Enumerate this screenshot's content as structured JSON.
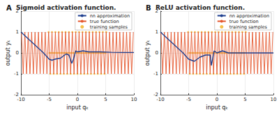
{
  "chart_data": [
    {
      "type": "line",
      "panel": "A",
      "title": "Sigmoid activation function.",
      "x_label": "input qₖ",
      "y_label": "output yₖ",
      "xlim": [
        -10,
        10
      ],
      "xticks": [
        -10,
        -5,
        0,
        5,
        10
      ],
      "ylim": [
        -2,
        2
      ],
      "yticks": [
        -2,
        -1,
        0,
        1,
        2
      ],
      "grid": true,
      "legend": "upper right",
      "series": [
        {
          "name": "nn approximation",
          "type": "line",
          "color": "#1f3f8f",
          "line_style": "solid",
          "x": [
            -10,
            -8,
            -6,
            -5,
            -4.5,
            -4,
            -3,
            -2,
            -1.5,
            -1,
            -0.7,
            -0.3,
            0,
            1,
            2,
            4,
            6,
            8,
            10
          ],
          "values": [
            1,
            0.5,
            0,
            -0.3,
            -0.35,
            -0.3,
            -0.25,
            -0.05,
            -0.1,
            -0.5,
            -0.3,
            0.1,
            0.05,
            0.1,
            0.05,
            0.05,
            0.03,
            0.02,
            0.02
          ]
        },
        {
          "name": "true function",
          "type": "line",
          "color": "#e4572e",
          "line_style": "solid",
          "x": [
            -9.9,
            -9.6,
            -9.3,
            -9,
            -8.7,
            -8.4,
            -8.1,
            -7.8,
            -7.5,
            -7.2,
            -6.9,
            -6.6,
            -6.3,
            -6,
            -5.7,
            -5.4,
            -5.1,
            -4.8,
            -4.5,
            -4.2,
            -3.9,
            -3.6,
            -3.3,
            -3,
            -2.7,
            -2.4,
            -2.1,
            -1.8,
            -1.5,
            -1.2,
            -0.9,
            -0.6,
            -0.3,
            0,
            0.3,
            0.6,
            0.9,
            1.2,
            1.5,
            1.8,
            2.1,
            2.4,
            2.7,
            3,
            3.3,
            3.6,
            3.9,
            4.2,
            4.5,
            4.8,
            5.1,
            5.4,
            5.7,
            6,
            6.3,
            6.6,
            6.9,
            7.2,
            7.5,
            7.8,
            8.1,
            8.4,
            8.7,
            9,
            9.3,
            9.6,
            9.9
          ],
          "values": [
            1,
            -1,
            1,
            -1,
            1,
            -1,
            1,
            -1,
            1,
            -1,
            1,
            -1,
            1,
            -1,
            1,
            -1,
            1,
            -1,
            1,
            -1,
            1,
            -1,
            1,
            -1,
            1,
            -1,
            1,
            -1,
            1,
            -1,
            1,
            -1,
            1,
            -1,
            1,
            -1,
            1,
            -1,
            1,
            -1,
            1,
            -1,
            1,
            -1,
            1,
            -1,
            1,
            -1,
            1,
            -1,
            1,
            -1,
            1,
            -1,
            1,
            -1,
            1,
            -1,
            1,
            -1,
            1,
            -1,
            1,
            -1,
            1,
            -1,
            1
          ]
        },
        {
          "name": "training samples",
          "type": "scatter",
          "color": "#f2b01e",
          "marker": "circle",
          "x": [
            -5.1,
            -4.95,
            -4.8,
            -4.65,
            -4.5,
            -4.35,
            -4.2,
            -4.05,
            -3.9,
            -3.75,
            -3.6,
            -3.45,
            -3.3,
            -3.15,
            -3,
            -2.85,
            -2.7,
            -2.55,
            -2.4,
            -2.25,
            -2.1,
            -1.95,
            -1.8,
            -1.65,
            -1.5,
            -1.35,
            -1.2,
            -1.05,
            -0.9,
            -0.75,
            -0.6,
            -0.45,
            -0.3,
            -0.15,
            0,
            0.15,
            0.3,
            0.45,
            0.6,
            0.75,
            0.9,
            1.05,
            1.2,
            1.35,
            1.5,
            1.65,
            1.8,
            1.95,
            2.1,
            2.25,
            2.4,
            2.55,
            2.7,
            2.85,
            3,
            3.15,
            3.3,
            3.45,
            3.6,
            3.75,
            3.9,
            4.05,
            4.2,
            4.35,
            4.5,
            4.65,
            4.8,
            4.95,
            5.1
          ],
          "values": [
            1,
            0,
            -1,
            0,
            1,
            0,
            -1,
            0,
            1,
            0,
            -1,
            0,
            1,
            0,
            -1,
            0,
            1,
            0,
            -1,
            0,
            1,
            0,
            -1,
            0,
            1,
            0,
            -1,
            0,
            1,
            0,
            -1,
            0,
            1,
            0,
            -1,
            0,
            1,
            0,
            -1,
            0,
            1,
            0,
            -1,
            0,
            1,
            0,
            -1,
            0,
            1,
            0,
            -1,
            0,
            1,
            0,
            -1,
            0,
            1,
            0,
            -1,
            0,
            1,
            0,
            -1,
            0,
            1,
            0,
            -1,
            0,
            1
          ]
        }
      ]
    },
    {
      "type": "line",
      "panel": "B",
      "title": "ReLU activation function.",
      "x_label": "input qₖ",
      "y_label": "output yₖ",
      "xlim": [
        -10,
        10
      ],
      "xticks": [
        -10,
        -5,
        0,
        5,
        10
      ],
      "ylim": [
        -2,
        2
      ],
      "yticks": [
        -2,
        -1,
        0,
        1,
        2
      ],
      "grid": true,
      "legend": "upper right",
      "series": [
        {
          "name": "nn approximation",
          "type": "line",
          "color": "#1f3f8f",
          "line_style": "solid",
          "x": [
            -10,
            -8,
            -6,
            -5,
            -4,
            -3,
            -2,
            -1.2,
            -1,
            -0.7,
            -0.5,
            0,
            1,
            2,
            4,
            6,
            8,
            10
          ],
          "values": [
            1,
            0.5,
            0,
            -0.3,
            -0.4,
            -0.2,
            -0.1,
            -0.1,
            -0.6,
            -0.2,
            0.1,
            0,
            0.1,
            0,
            0,
            0,
            0,
            0
          ]
        },
        {
          "name": "true function",
          "type": "line",
          "color": "#e4572e",
          "line_style": "solid",
          "x": [
            -9.9,
            -9.6,
            -9.3,
            -9,
            -8.7,
            -8.4,
            -8.1,
            -7.8,
            -7.5,
            -7.2,
            -6.9,
            -6.6,
            -6.3,
            -6,
            -5.7,
            -5.4,
            -5.1,
            -4.8,
            -4.5,
            -4.2,
            -3.9,
            -3.6,
            -3.3,
            -3,
            -2.7,
            -2.4,
            -2.1,
            -1.8,
            -1.5,
            -1.2,
            -0.9,
            -0.6,
            -0.3,
            0,
            0.3,
            0.6,
            0.9,
            1.2,
            1.5,
            1.8,
            2.1,
            2.4,
            2.7,
            3,
            3.3,
            3.6,
            3.9,
            4.2,
            4.5,
            4.8,
            5.1,
            5.4,
            5.7,
            6,
            6.3,
            6.6,
            6.9,
            7.2,
            7.5,
            7.8,
            8.1,
            8.4,
            8.7,
            9,
            9.3,
            9.6,
            9.9
          ],
          "values": [
            1,
            -1,
            1,
            -1,
            1,
            -1,
            1,
            -1,
            1,
            -1,
            1,
            -1,
            1,
            -1,
            1,
            -1,
            1,
            -1,
            1,
            -1,
            1,
            -1,
            1,
            -1,
            1,
            -1,
            1,
            -1,
            1,
            -1,
            1,
            -1,
            1,
            -1,
            1,
            -1,
            1,
            -1,
            1,
            -1,
            1,
            -1,
            1,
            -1,
            1,
            -1,
            1,
            -1,
            1,
            -1,
            1,
            -1,
            1,
            -1,
            1,
            -1,
            1,
            -1,
            1,
            -1,
            1,
            -1,
            1,
            -1,
            1,
            -1,
            1
          ]
        },
        {
          "name": "training samples",
          "type": "scatter",
          "color": "#f2b01e",
          "marker": "circle",
          "x": [
            -5.1,
            -4.95,
            -4.8,
            -4.65,
            -4.5,
            -4.35,
            -4.2,
            -4.05,
            -3.9,
            -3.75,
            -3.6,
            -3.45,
            -3.3,
            -3.15,
            -3,
            -2.85,
            -2.7,
            -2.55,
            -2.4,
            -2.25,
            -2.1,
            -1.95,
            -1.8,
            -1.65,
            -1.5,
            -1.35,
            -1.2,
            -1.05,
            -0.9,
            -0.75,
            -0.6,
            -0.45,
            -0.3,
            -0.15,
            0,
            0.15,
            0.3,
            0.45,
            0.6,
            0.75,
            0.9,
            1.05,
            1.2,
            1.35,
            1.5,
            1.65,
            1.8,
            1.95,
            2.1,
            2.25,
            2.4,
            2.55,
            2.7,
            2.85,
            3,
            3.15,
            3.3,
            3.45,
            3.6,
            3.75,
            3.9,
            4.05,
            4.2,
            4.35,
            4.5,
            4.65,
            4.8,
            4.95,
            5.1
          ],
          "values": [
            1,
            0,
            -1,
            0,
            1,
            0,
            -1,
            0,
            1,
            0,
            -1,
            0,
            1,
            0,
            -1,
            0,
            1,
            0,
            -1,
            0,
            1,
            0,
            -1,
            0,
            1,
            0,
            -1,
            0,
            1,
            0,
            -1,
            0,
            1,
            0,
            -1,
            0,
            1,
            0,
            -1,
            0,
            1,
            0,
            -1,
            0,
            1,
            0,
            -1,
            0,
            1,
            0,
            -1,
            0,
            1,
            0,
            -1,
            0,
            1,
            0,
            -1,
            0,
            1,
            0,
            -1,
            0,
            1,
            0,
            -1,
            0,
            1
          ]
        }
      ]
    }
  ]
}
